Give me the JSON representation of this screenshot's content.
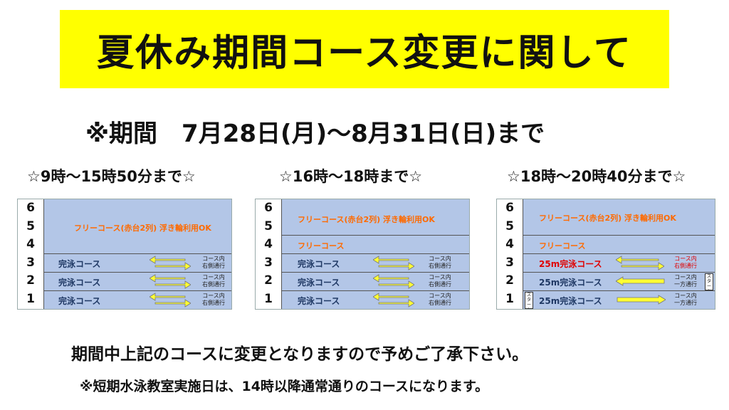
{
  "title": "夏休み期間コース変更に関して",
  "period": "※期間　7月28日(月)～8月31日(日)まで",
  "colors": {
    "title_bg": "#ffff00",
    "zone_bg": "#b3c6e7",
    "free_text": "#ff6a00",
    "swim_text": "#1f3864",
    "red_text": "#e00000",
    "arrow_fill": "#ffff33"
  },
  "slots": [
    {
      "heading": "☆9時～15時50分まで☆",
      "lanes": [
        "6",
        "5",
        "4",
        "3",
        "2",
        "1"
      ],
      "free_label": "フリーコース(赤台2列) 浮き輪利用OK",
      "swim_labels": [
        "完泳コース",
        "完泳コース",
        "完泳コース"
      ],
      "notes": [
        [
          "コース内",
          "右側通行"
        ],
        [
          "コース内",
          "右側通行"
        ],
        [
          "コース内",
          "右側通行"
        ]
      ]
    },
    {
      "heading": "☆16時～18時まで☆",
      "lanes": [
        "6",
        "5",
        "4",
        "3",
        "2",
        "1"
      ],
      "free_label": "フリーコース(赤台2列) 浮き輪利用OK",
      "free_label_2": "フリーコース",
      "swim_labels": [
        "完泳コース",
        "完泳コース",
        "完泳コース"
      ],
      "notes": [
        [
          "コース内",
          "右側通行"
        ],
        [
          "コース内",
          "右側通行"
        ],
        [
          "コース内",
          "右側通行"
        ]
      ]
    },
    {
      "heading": "☆18時～20時40分まで☆",
      "lanes": [
        "6",
        "5",
        "4",
        "3",
        "2",
        "1"
      ],
      "free_label": "フリーコース(赤台2列) 浮き輪利用OK",
      "free_label_2": "フリーコース",
      "swim_labels": [
        "25m完泳コース",
        "25m完泳コース",
        "25m完泳コース"
      ],
      "notes": [
        [
          "コース内",
          "右側通行"
        ],
        [
          "コース内",
          "一方通行"
        ],
        [
          "コース内",
          "一方通行"
        ]
      ],
      "start_label": "スタート"
    }
  ],
  "message_1": "期間中上記のコースに変更となりますので予めご了承下さい。",
  "message_2": "※短期水泳教室実施日は、14時以降通常通りのコースになります。"
}
